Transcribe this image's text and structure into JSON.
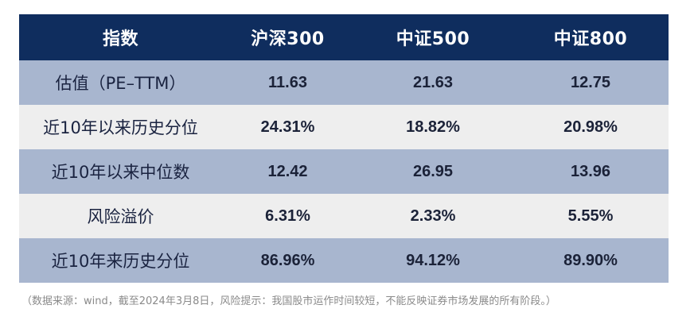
{
  "table": {
    "headers": [
      "指数",
      "沪深300",
      "中证500",
      "中证800"
    ],
    "rows": [
      {
        "label": "估值（PE–TTM）",
        "values": [
          "11.63",
          "21.63",
          "12.75"
        ]
      },
      {
        "label": "近10年以来历史分位",
        "values": [
          "24.31%",
          "18.82%",
          "20.98%"
        ]
      },
      {
        "label": "近10年以来中位数",
        "values": [
          "12.42",
          "26.95",
          "13.96"
        ]
      },
      {
        "label": "风险溢价",
        "values": [
          "6.31%",
          "2.33%",
          "5.55%"
        ]
      },
      {
        "label": "近10年来历史分位",
        "values": [
          "86.96%",
          "94.12%",
          "89.90%"
        ]
      }
    ]
  },
  "footnote": "（数据来源：wind，截至2024年3月8日，风险提示：我国股市运作时间较短，不能反映证券市场发展的所有阶段。）",
  "colors": {
    "header_bg": "#0f2d5e",
    "row_dark": "#a8b6cf",
    "row_light": "#eeeeee",
    "footnote": "#8a8a8a"
  }
}
